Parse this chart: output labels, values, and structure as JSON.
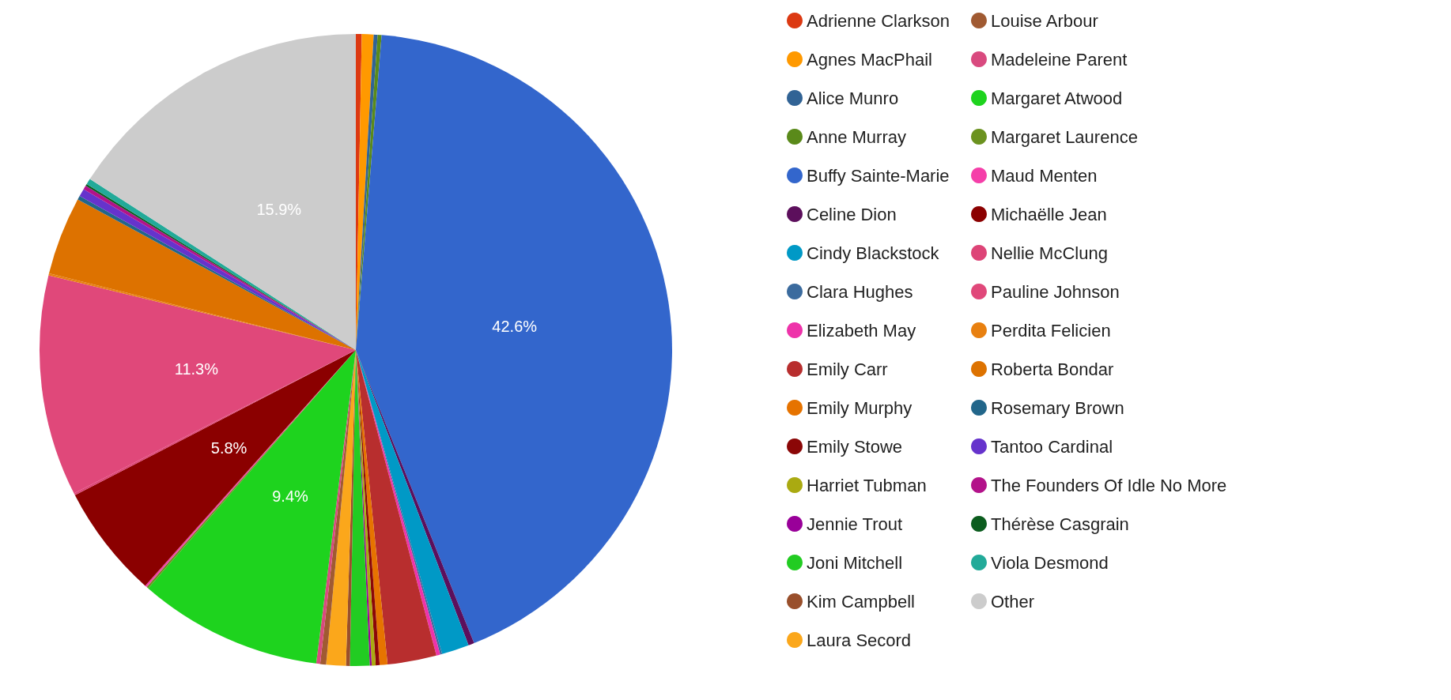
{
  "chart_data": {
    "type": "pie",
    "legend": "right",
    "categories": [
      "Adrienne Clarkson",
      "Agnes MacPhail",
      "Alice Munro",
      "Anne Murray",
      "Buffy Sainte-Marie",
      "Celine Dion",
      "Cindy Blackstock",
      "Clara Hughes",
      "Elizabeth May",
      "Emily Carr",
      "Emily Murphy",
      "Emily Stowe",
      "Harriet Tubman",
      "Jennie Trout",
      "Joni Mitchell",
      "Kim Campbell",
      "Laura Secord",
      "Louise Arbour",
      "Madeleine Parent",
      "Margaret Atwood",
      "Margaret Laurence",
      "Maud Menten",
      "Michaëlle Jean",
      "Nellie McClung",
      "Pauline Johnson",
      "Perdita Felicien",
      "Roberta Bondar",
      "Rosemary Brown",
      "Tantoo Cardinal",
      "The Founders Of Idle No More",
      "Thérèse Casgrain",
      "Viola Desmond",
      "Other"
    ],
    "values": [
      0.3,
      0.6,
      0.2,
      0.2,
      42.6,
      0.3,
      1.4,
      0.1,
      0.2,
      2.5,
      0.4,
      0.2,
      0.2,
      0.1,
      1.0,
      0.2,
      1.0,
      0.3,
      0.2,
      9.4,
      0.1,
      0.1,
      5.8,
      0.1,
      11.3,
      0.1,
      4.0,
      0.2,
      0.4,
      0.2,
      0.1,
      0.3,
      15.9
    ],
    "value_labels": [
      null,
      null,
      null,
      null,
      "42.6%",
      null,
      null,
      null,
      null,
      null,
      null,
      null,
      null,
      null,
      null,
      null,
      null,
      null,
      null,
      "9.4%",
      null,
      null,
      "5.8%",
      null,
      "11.3%",
      null,
      null,
      null,
      null,
      null,
      null,
      null,
      "15.9%"
    ],
    "colors": [
      "#dc3912",
      "#ff9900",
      "#316395",
      "#5a8a1a",
      "#3366cc",
      "#5c0f5c",
      "#0099c6",
      "#3b6b9e",
      "#ee33aa",
      "#b82e2e",
      "#e67300",
      "#8b0707",
      "#aaaa11",
      "#990099",
      "#22cc22",
      "#994f2b",
      "#fba71b",
      "#a05a32",
      "#d94a7f",
      "#1ed31e",
      "#6b921f",
      "#f53fa9",
      "#8b0000",
      "#dd4477",
      "#e0487a",
      "#e88010",
      "#dd7200",
      "#22668a",
      "#6633cc",
      "#b3128a",
      "#0b5c1e",
      "#22aa99",
      "#cccccc"
    ]
  }
}
